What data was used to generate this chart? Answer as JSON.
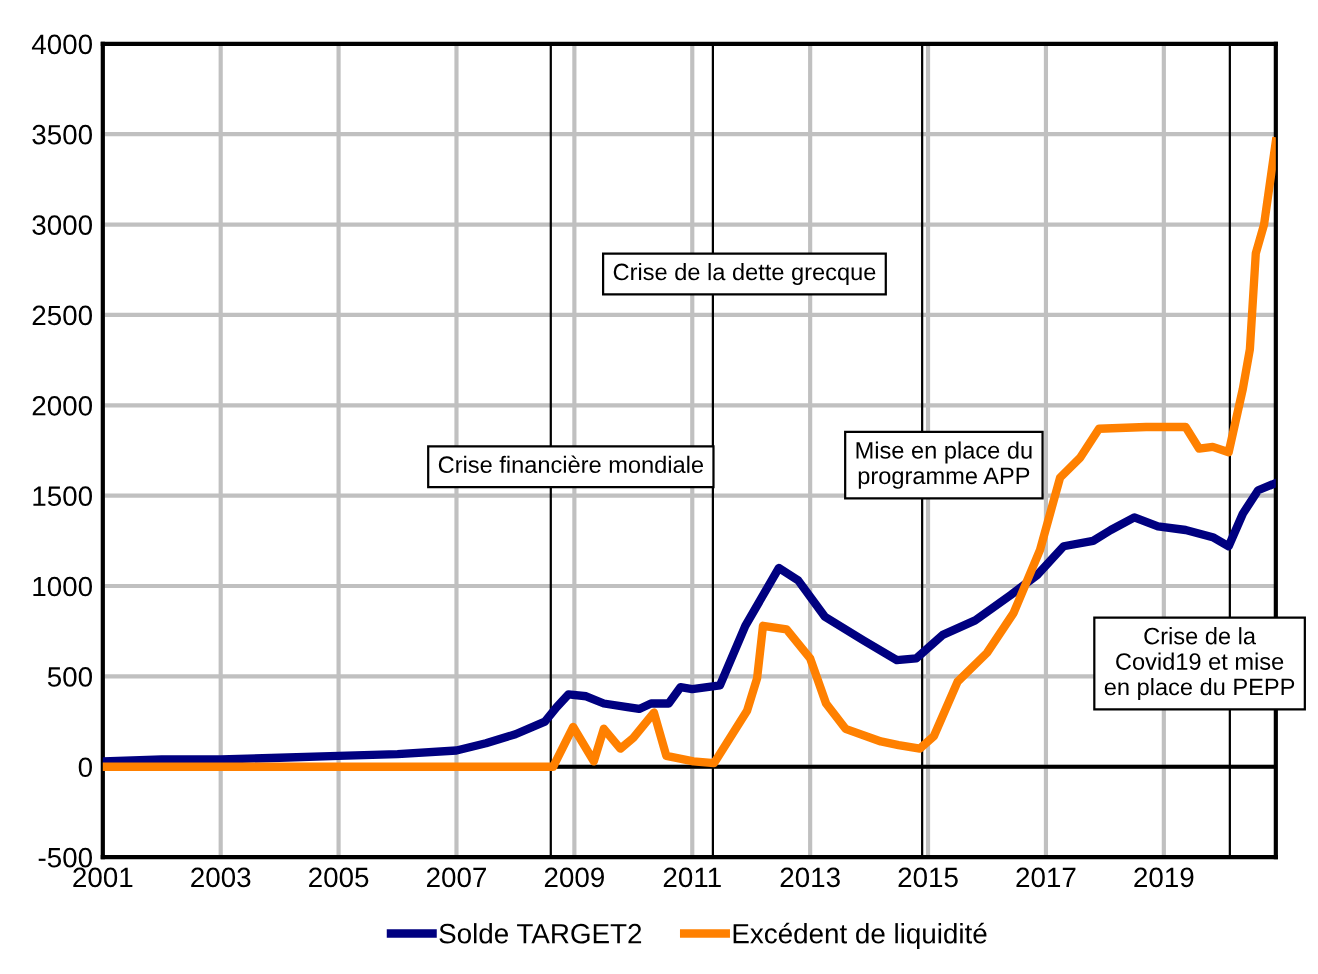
{
  "chart_data": {
    "type": "line",
    "xlim": [
      2001,
      2020.9
    ],
    "xticks": [
      2001,
      2003,
      2005,
      2007,
      2009,
      2011,
      2013,
      2015,
      2017,
      2019
    ],
    "ylim": [
      -500,
      4000
    ],
    "yticks": [
      -500,
      0,
      500,
      1000,
      1500,
      2000,
      2500,
      3000,
      3500,
      4000
    ],
    "grid": true,
    "legend": "bottom",
    "marker": "none",
    "line_style": "solid",
    "series": [
      {
        "name": "Solde TARGET2",
        "color": "#000080",
        "x": [
          2001,
          2002,
          2003,
          2004,
          2005,
          2006,
          2007,
          2007.5,
          2008,
          2008.5,
          2008.7,
          2008.9,
          2009.2,
          2009.5,
          2009.9,
          2010.1,
          2010.3,
          2010.6,
          2010.8,
          2011.0,
          2011.47,
          2011.9,
          2012.47,
          2012.8,
          2013.25,
          2013.9,
          2014.47,
          2014.8,
          2015.25,
          2015.8,
          2016.4,
          2016.85,
          2017.3,
          2017.8,
          2018.1,
          2018.5,
          2018.9,
          2019.37,
          2019.83,
          2020.1,
          2020.34,
          2020.6,
          2020.9
        ],
        "values": [
          30,
          40,
          40,
          50,
          60,
          70,
          90,
          130,
          180,
          250,
          330,
          400,
          390,
          350,
          330,
          320,
          350,
          350,
          440,
          430,
          450,
          780,
          1100,
          1030,
          830,
          700,
          590,
          600,
          730,
          810,
          950,
          1060,
          1220,
          1250,
          1310,
          1380,
          1330,
          1310,
          1270,
          1220,
          1400,
          1530,
          1570
        ]
      },
      {
        "name": "Excédent de liquidité",
        "color": "#ff8000",
        "x": [
          2001,
          2004,
          2007,
          2008.64,
          2008.98,
          2009.33,
          2009.5,
          2009.78,
          2010.0,
          2010.35,
          2010.56,
          2011.02,
          2011.37,
          2011.93,
          2012.1,
          2012.2,
          2012.6,
          2013.0,
          2013.27,
          2013.6,
          2014.2,
          2014.5,
          2014.86,
          2015.1,
          2015.5,
          2016.0,
          2016.45,
          2016.9,
          2017.24,
          2017.58,
          2017.9,
          2018.7,
          2019.37,
          2019.6,
          2019.83,
          2020.1,
          2020.34,
          2020.46,
          2020.56,
          2020.7,
          2020.9
        ],
        "values": [
          0,
          0,
          0,
          0,
          220,
          30,
          210,
          100,
          160,
          300,
          60,
          30,
          20,
          310,
          490,
          780,
          760,
          600,
          350,
          210,
          140,
          120,
          100,
          170,
          470,
          630,
          850,
          1200,
          1600,
          1710,
          1870,
          1880,
          1880,
          1760,
          1770,
          1740,
          2090,
          2310,
          2840,
          3000,
          3460
        ]
      }
    ],
    "ref_lines": [
      {
        "axis": "x",
        "value": 2008.6,
        "color": "#000000"
      },
      {
        "axis": "x",
        "value": 2011.35,
        "color": "#000000"
      },
      {
        "axis": "x",
        "value": 2014.9,
        "color": "#000000"
      },
      {
        "axis": "x",
        "value": 2020.12,
        "color": "#000000"
      }
    ],
    "annotations": [
      "Crise financière mondiale",
      "Crise de la dette grecque",
      "Mise en place du\nprogramme APP",
      "Crise de la\nCovid19 et mise\nen place du PEPP"
    ]
  }
}
